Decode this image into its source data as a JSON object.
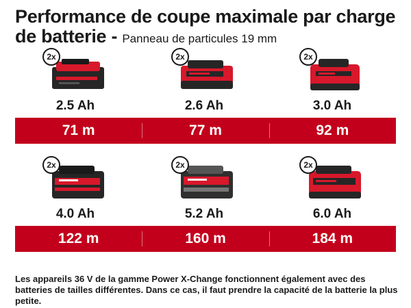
{
  "title": {
    "main": "Performance de coupe maximale par charge de batterie - ",
    "sub": "Panneau de particules 19 mm"
  },
  "colors": {
    "accent": "#c3001c",
    "battery_red": "#d8182b",
    "battery_dark": "#262626"
  },
  "badge_label": "2x",
  "rows": [
    {
      "batteries": [
        {
          "capacity": "2.5 Ah",
          "icon": "battery-2-5ah-icon",
          "result": "71 m"
        },
        {
          "capacity": "2.6 Ah",
          "icon": "battery-2-6ah-icon",
          "result": "77 m"
        },
        {
          "capacity": "3.0 Ah",
          "icon": "battery-3-0ah-icon",
          "result": "92 m"
        }
      ]
    },
    {
      "batteries": [
        {
          "capacity": "4.0 Ah",
          "icon": "battery-4-0ah-icon",
          "result": "122 m"
        },
        {
          "capacity": "5.2 Ah",
          "icon": "battery-5-2ah-icon",
          "result": "160 m"
        },
        {
          "capacity": "6.0 Ah",
          "icon": "battery-6-0ah-icon",
          "result": "184 m"
        }
      ]
    }
  ],
  "footnote": "Les appareils 36 V de la gamme Power X-Change fonctionnent également avec des batteries de tailles différentes. Dans ce cas, il faut prendre la capacité de la batterie la plus petite."
}
